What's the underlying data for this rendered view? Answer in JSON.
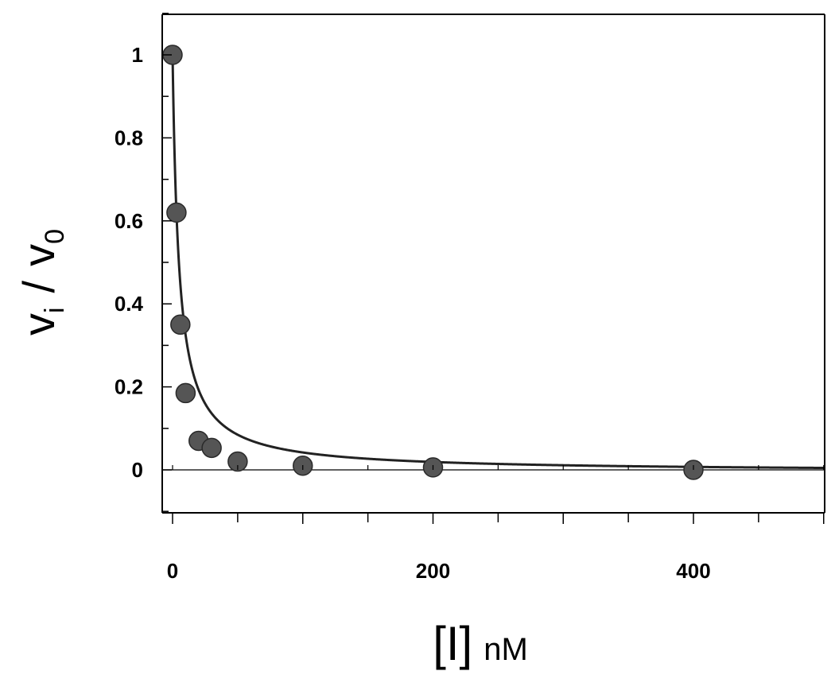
{
  "chart_data": {
    "type": "scatter",
    "x_ticks": [
      0,
      200,
      400
    ],
    "y_ticks": [
      0,
      0.2,
      0.4,
      0.6,
      0.8,
      1
    ],
    "x_tick_labels": [
      "0",
      "200",
      "400"
    ],
    "y_tick_labels": [
      "0",
      "0.2",
      "0.4",
      "0.6",
      "0.8",
      "1"
    ],
    "xlim": [
      0,
      500
    ],
    "ylim": [
      -0.1,
      1.1
    ],
    "xlabel": {
      "main": "[I]",
      "unit": "nM"
    },
    "ylabel": {
      "v": "v",
      "i_sub": "i",
      "slash": "/",
      "v2": "v",
      "zero_sub": "0"
    },
    "grid": false,
    "series": [
      {
        "points": [
          {
            "x": 0,
            "y": 1.0
          },
          {
            "x": 3,
            "y": 0.62
          },
          {
            "x": 6,
            "y": 0.35
          },
          {
            "x": 10,
            "y": 0.185
          },
          {
            "x": 20,
            "y": 0.07
          },
          {
            "x": 30,
            "y": 0.053
          },
          {
            "x": 50,
            "y": 0.02
          },
          {
            "x": 100,
            "y": 0.01
          },
          {
            "x": 200,
            "y": 0.006
          },
          {
            "x": 400,
            "y": 0.0
          }
        ]
      }
    ],
    "fit_curve": {
      "type": "hyperbolic",
      "ic50_nM": 4.9,
      "y0": -0.005
    },
    "marker_color": "#555555",
    "line_color": "#222222"
  }
}
